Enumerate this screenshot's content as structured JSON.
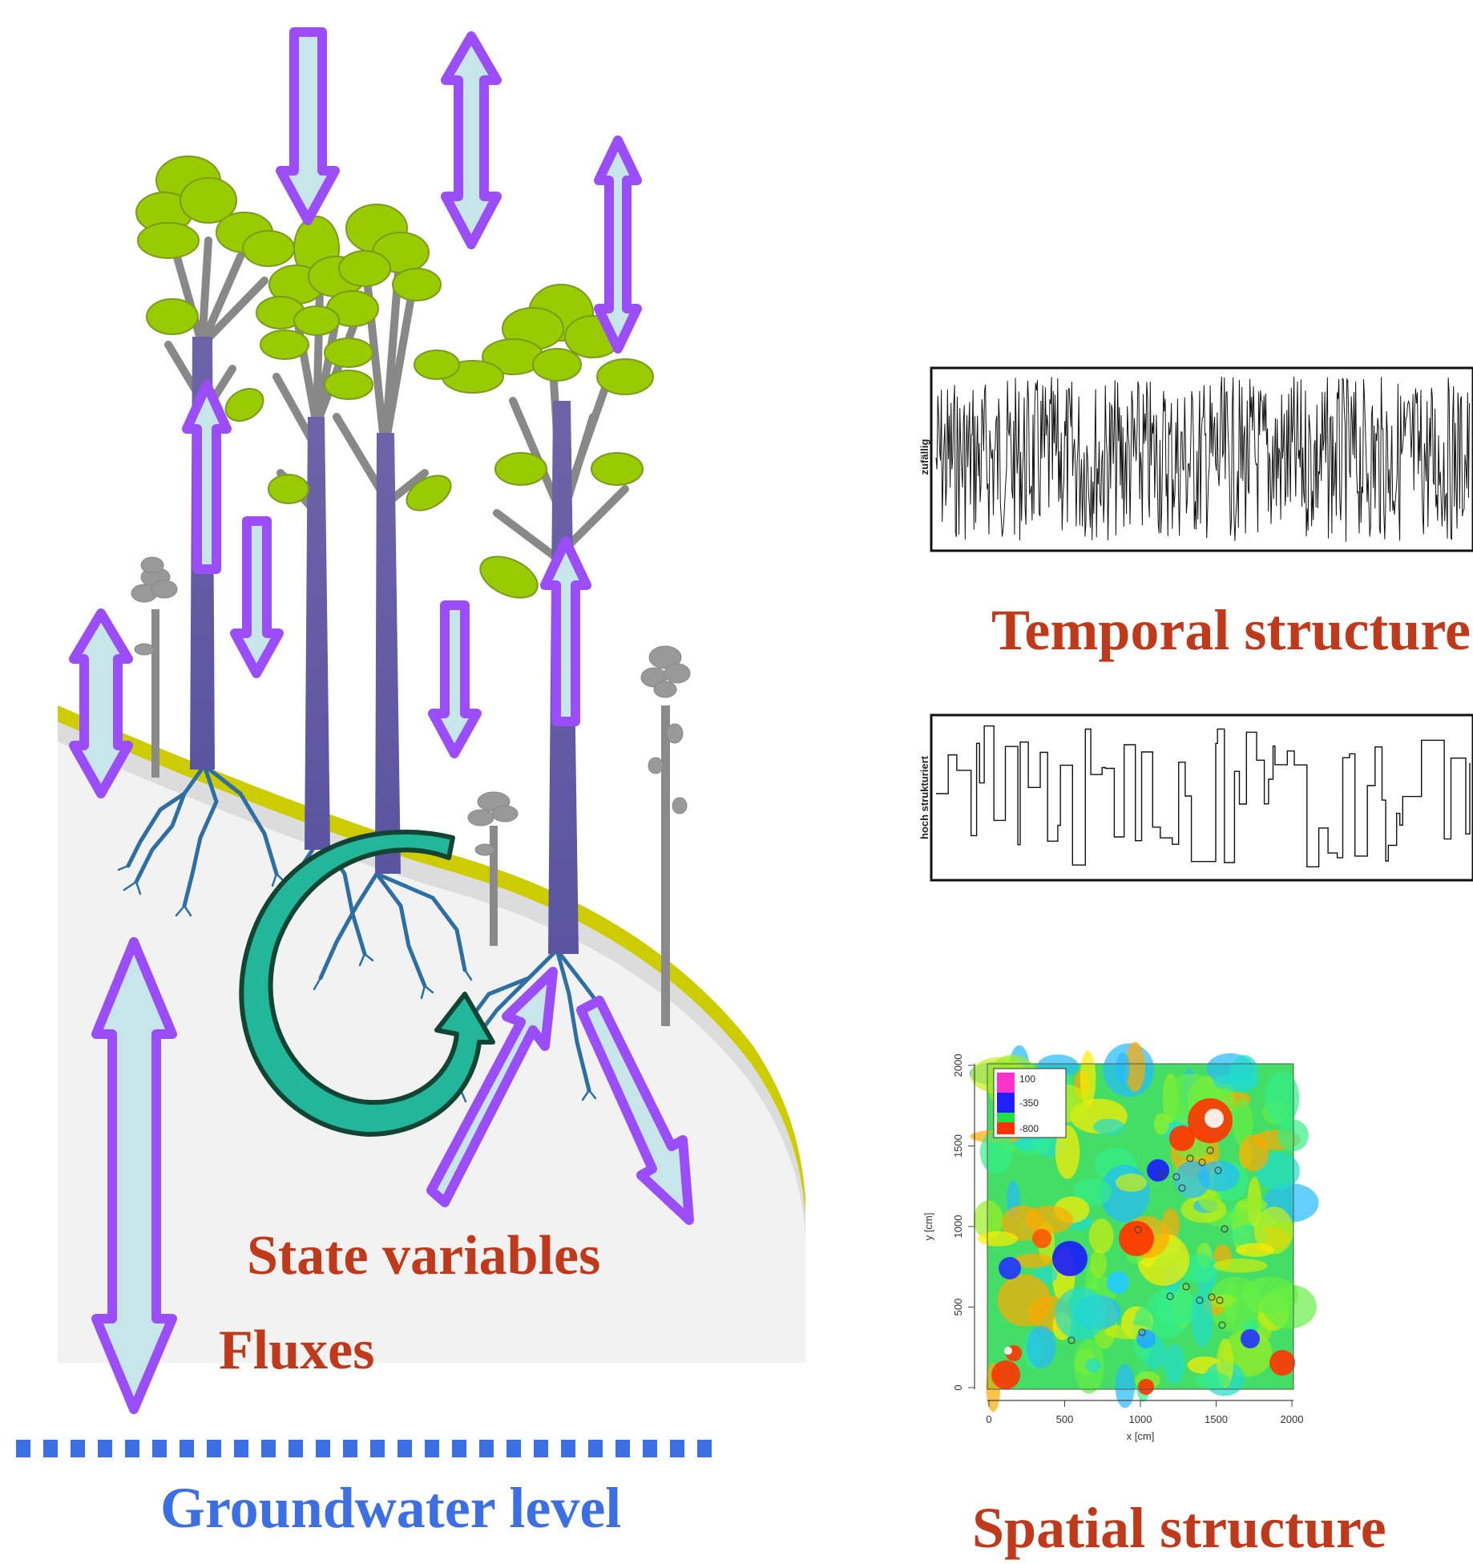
{
  "labels": {
    "state_variables": "State variables",
    "fluxes": "Fluxes",
    "groundwater_level": "Groundwater level",
    "temporal_structure": "Temporal structure",
    "spatial_structure": "Spatial structure"
  },
  "timeseries": [
    {
      "label": "zufällig"
    },
    {
      "label": "hoch strukturiert"
    }
  ],
  "spatial_map": {
    "x_axis_label": "x [cm]",
    "y_axis_label": "y [cm]",
    "x_ticks": [
      "0",
      "500",
      "1000",
      "1500",
      "2000"
    ],
    "y_ticks": [
      "0",
      "500",
      "1000",
      "1500",
      "2000"
    ],
    "legend": [
      "100",
      "-350",
      "-800"
    ]
  },
  "colors": {
    "label_red": "#c0391b",
    "label_blue": "#3b6fe3",
    "arrow_outline": "#9b4dfa",
    "arrow_fill": "#c6e6ea",
    "leaf": "#99cc00",
    "trunk": "#6a5fa3",
    "root": "#2d6fa3",
    "cycle": "#22b79a",
    "soil": "#cccc00"
  }
}
